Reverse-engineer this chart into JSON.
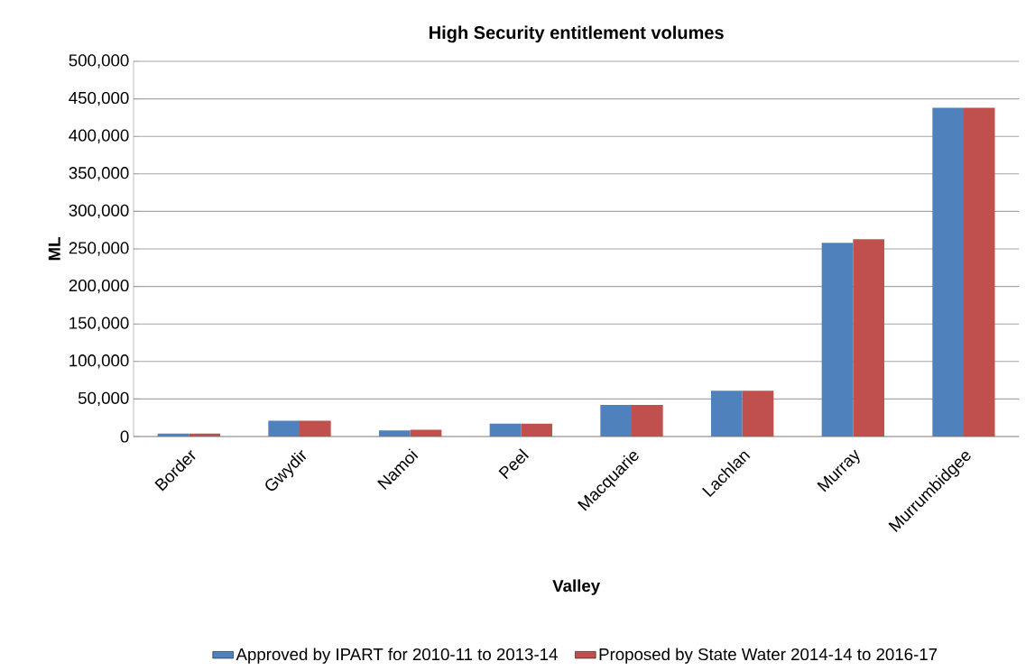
{
  "chart_data": {
    "type": "bar",
    "title": "High Security entitlement volumes",
    "xlabel": "Valley",
    "ylabel": "ML",
    "categories": [
      "Border",
      "Gwydir",
      "Namoi",
      "Peel",
      "Macquarie",
      "Lachlan",
      "Murray",
      "Murrumbidgee"
    ],
    "series": [
      {
        "name": "Approved by IPART for 2010-11 to 2013-14",
        "color": "#4f81bd",
        "values": [
          4000,
          21000,
          8000,
          17000,
          42000,
          61000,
          258000,
          438000
        ]
      },
      {
        "name": "Proposed by State Water 2014-14 to 2016-17",
        "color": "#c0504d",
        "values": [
          4000,
          21000,
          9000,
          17000,
          42000,
          61000,
          263000,
          438000
        ]
      }
    ],
    "ylim": [
      0,
      500000
    ],
    "yticks": [
      {
        "value": 0,
        "label": "0"
      },
      {
        "value": 50000,
        "label": "50,000"
      },
      {
        "value": 100000,
        "label": "100,000"
      },
      {
        "value": 150000,
        "label": "150,000"
      },
      {
        "value": 200000,
        "label": "200,000"
      },
      {
        "value": 250000,
        "label": "250,000"
      },
      {
        "value": 300000,
        "label": "300,000"
      },
      {
        "value": 350000,
        "label": "350,000"
      },
      {
        "value": 400000,
        "label": "400,000"
      },
      {
        "value": 450000,
        "label": "450,000"
      },
      {
        "value": 500000,
        "label": "500,000"
      }
    ],
    "grid": "y",
    "legend": "bottom"
  }
}
